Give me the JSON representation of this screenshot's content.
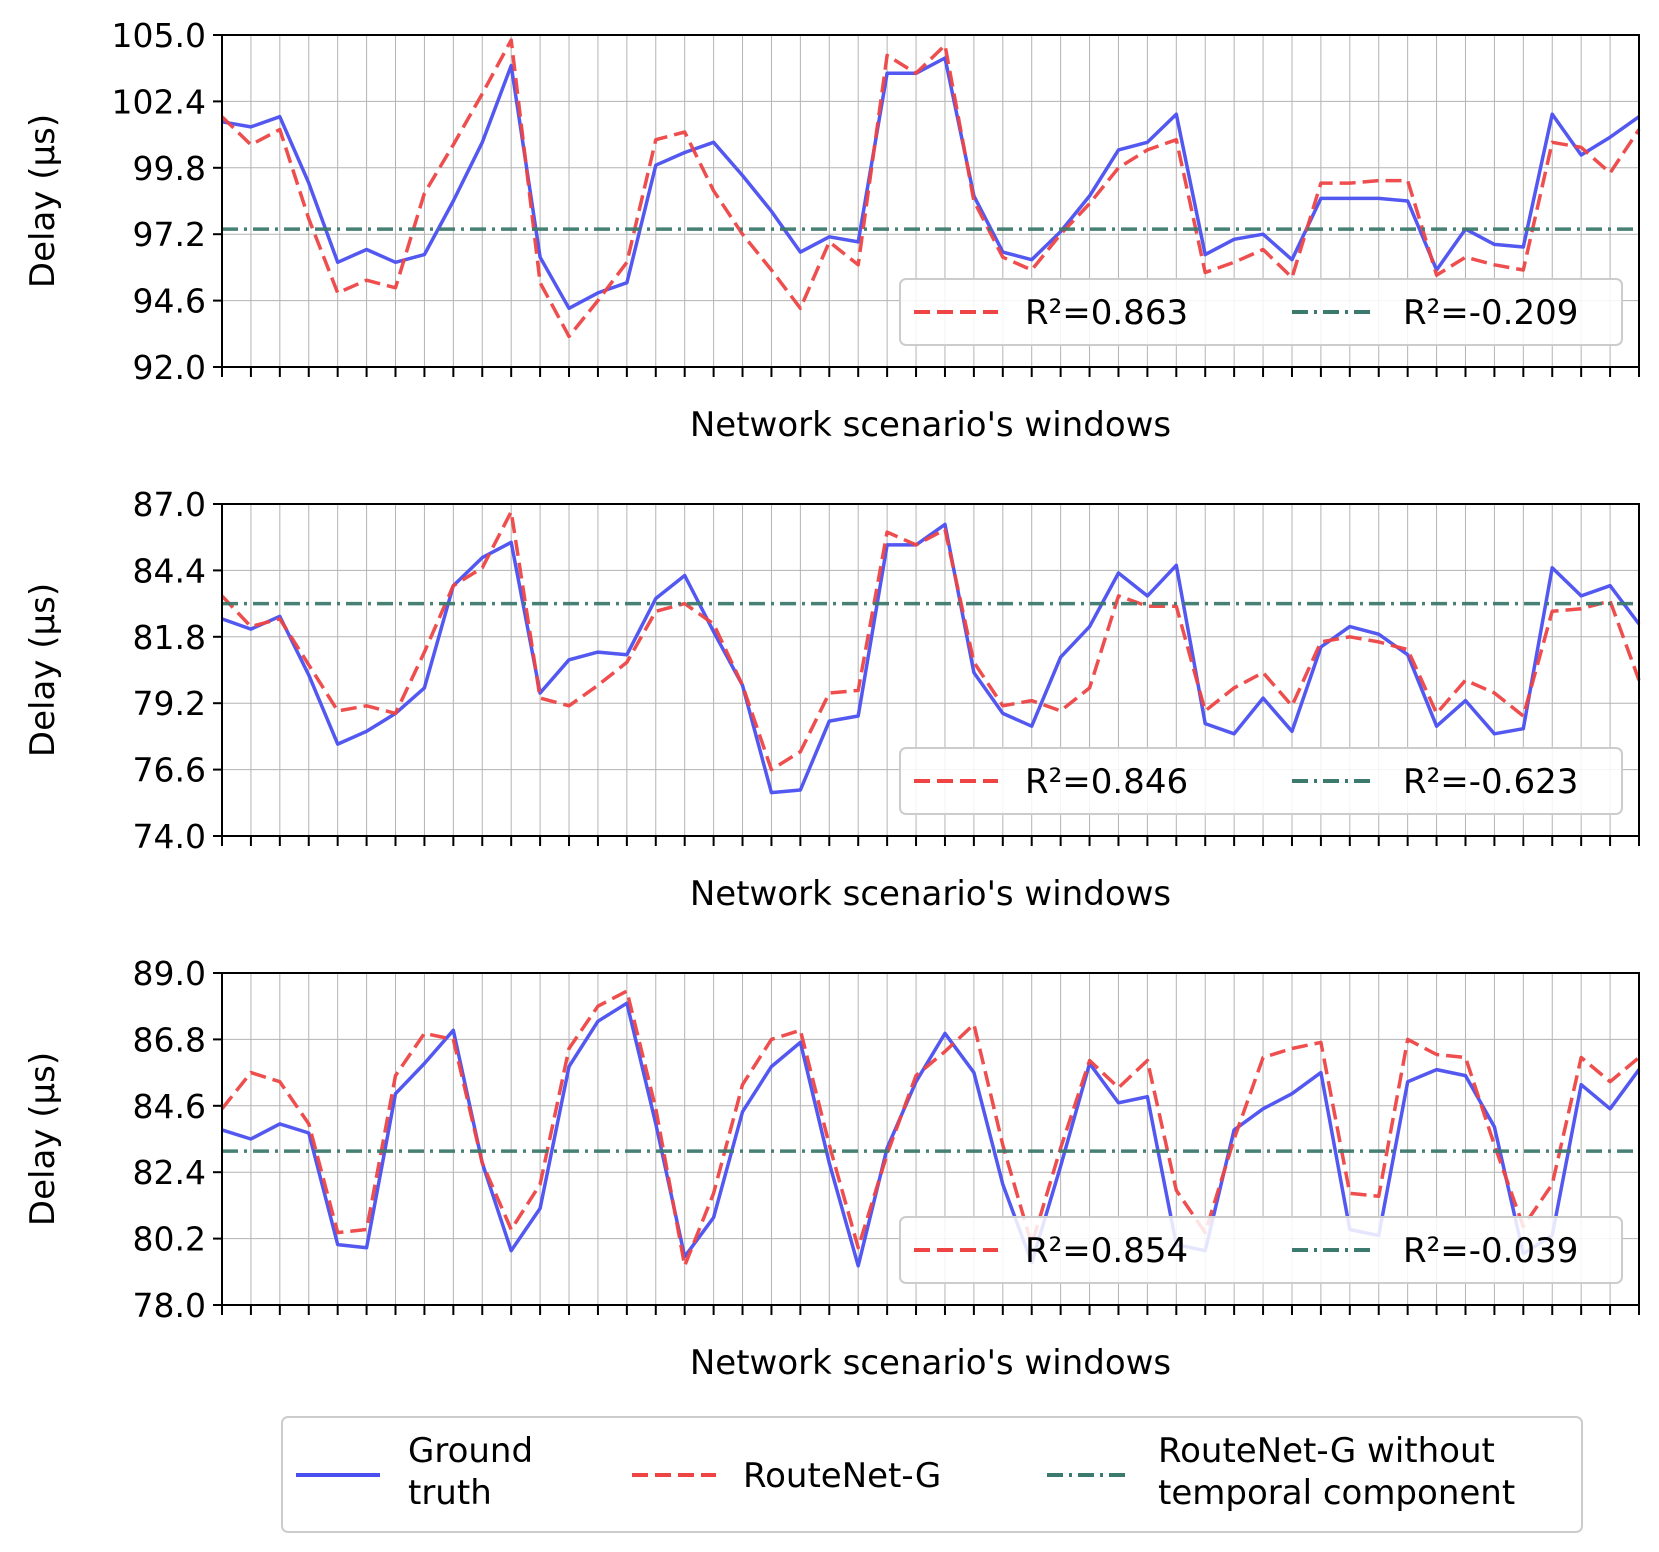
{
  "colors": {
    "ground_truth": "#4a4ff0",
    "routenet": "#ee4444",
    "baseline": "#3d7a6e",
    "grid": "#b3b3b3"
  },
  "legend": {
    "entries": [
      {
        "key": "ground_truth",
        "label_lines": [
          "Ground",
          "truth"
        ],
        "style": "solid"
      },
      {
        "key": "routenet",
        "label_lines": [
          "RouteNet-G"
        ],
        "style": "dashed"
      },
      {
        "key": "baseline",
        "label_lines": [
          "RouteNet-G without",
          "temporal component"
        ],
        "style": "dashdot"
      }
    ]
  },
  "chart_data": [
    {
      "type": "line",
      "xlabel": "Network scenario's windows",
      "ylabel": "Delay (µs)",
      "ylim": [
        92.0,
        105.0
      ],
      "yticks": [
        "92.0",
        "94.6",
        "97.2",
        "99.8",
        "102.4",
        "105.0"
      ],
      "x_count": 50,
      "grid": true,
      "legend_position": "lower-right",
      "r2_labels": [
        "R²=0.863",
        "R²=-0.209"
      ],
      "series": [
        {
          "name": "Ground truth",
          "key": "ground_truth",
          "values": [
            101.6,
            101.4,
            101.8,
            99.2,
            96.1,
            96.6,
            96.1,
            96.4,
            98.5,
            100.8,
            103.8,
            96.3,
            94.3,
            94.9,
            95.3,
            99.9,
            100.4,
            100.8,
            99.5,
            98.1,
            96.5,
            97.1,
            96.9,
            103.5,
            103.5,
            104.1,
            98.7,
            96.5,
            96.2,
            97.3,
            98.7,
            100.5,
            100.8,
            101.9,
            96.4,
            97.0,
            97.2,
            96.2,
            98.6,
            98.6,
            98.6,
            98.5,
            95.8,
            97.4,
            96.8,
            96.7,
            101.9,
            100.3,
            101.0,
            101.8
          ]
        },
        {
          "name": "RouteNet-G",
          "key": "routenet",
          "values": [
            101.8,
            100.7,
            101.3,
            97.8,
            94.9,
            95.4,
            95.1,
            98.8,
            100.7,
            102.7,
            104.8,
            95.3,
            93.2,
            94.6,
            96.1,
            100.9,
            101.2,
            98.9,
            97.2,
            95.8,
            94.3,
            96.9,
            96.0,
            104.2,
            103.5,
            104.6,
            98.5,
            96.3,
            95.8,
            97.2,
            98.4,
            99.8,
            100.5,
            100.9,
            95.7,
            96.1,
            96.6,
            95.5,
            99.2,
            99.2,
            99.3,
            99.3,
            95.6,
            96.3,
            96.0,
            95.8,
            100.8,
            100.6,
            99.6,
            101.3
          ]
        },
        {
          "name": "RouteNet-G without temporal component",
          "key": "baseline",
          "constant": 97.4
        }
      ]
    },
    {
      "type": "line",
      "xlabel": "Network scenario's windows",
      "ylabel": "Delay (µs)",
      "ylim": [
        74.0,
        87.0
      ],
      "yticks": [
        "74.0",
        "76.6",
        "79.2",
        "81.8",
        "84.4",
        "87.0"
      ],
      "x_count": 50,
      "grid": true,
      "legend_position": "lower-right",
      "r2_labels": [
        "R²=0.846",
        "R²=-0.623"
      ],
      "series": [
        {
          "name": "Ground truth",
          "key": "ground_truth",
          "values": [
            82.5,
            82.1,
            82.6,
            80.3,
            77.6,
            78.1,
            78.8,
            79.8,
            83.8,
            84.9,
            85.5,
            79.6,
            80.9,
            81.2,
            81.1,
            83.3,
            84.2,
            82.0,
            79.9,
            75.7,
            75.8,
            78.5,
            78.7,
            85.4,
            85.4,
            86.2,
            80.4,
            78.8,
            78.3,
            81.0,
            82.2,
            84.3,
            83.4,
            84.6,
            78.4,
            78.0,
            79.4,
            78.1,
            81.4,
            82.2,
            81.9,
            81.1,
            78.3,
            79.3,
            78.0,
            78.2,
            84.5,
            83.4,
            83.8,
            82.3
          ]
        },
        {
          "name": "RouteNet-G",
          "key": "routenet",
          "values": [
            83.4,
            82.2,
            82.5,
            80.7,
            78.9,
            79.1,
            78.8,
            81.2,
            83.8,
            84.5,
            86.7,
            79.4,
            79.1,
            79.9,
            80.8,
            82.8,
            83.1,
            82.3,
            79.9,
            76.6,
            77.3,
            79.6,
            79.7,
            85.9,
            85.4,
            86.0,
            80.8,
            79.1,
            79.3,
            78.9,
            79.8,
            83.4,
            83.0,
            83.0,
            78.9,
            79.8,
            80.4,
            79.1,
            81.6,
            81.8,
            81.6,
            81.3,
            78.8,
            80.1,
            79.6,
            78.7,
            82.8,
            82.9,
            83.2,
            80.1
          ]
        },
        {
          "name": "RouteNet-G without temporal component",
          "key": "baseline",
          "constant": 83.1
        }
      ]
    },
    {
      "type": "line",
      "xlabel": "Network scenario's windows",
      "ylabel": "Delay (µs)",
      "ylim": [
        78.0,
        89.0
      ],
      "yticks": [
        "78.0",
        "80.2",
        "82.4",
        "84.6",
        "86.8",
        "89.0"
      ],
      "x_count": 50,
      "grid": true,
      "legend_position": "lower-right",
      "r2_labels": [
        "R²=0.854",
        "R²=-0.039"
      ],
      "series": [
        {
          "name": "Ground truth",
          "key": "ground_truth",
          "values": [
            83.8,
            83.5,
            84.0,
            83.7,
            80.0,
            79.9,
            85.0,
            86.0,
            87.1,
            82.7,
            79.8,
            81.2,
            85.9,
            87.4,
            88.0,
            84.0,
            79.6,
            80.9,
            84.4,
            85.9,
            86.7,
            82.7,
            79.3,
            83.2,
            85.4,
            87.0,
            85.7,
            82.0,
            79.4,
            82.6,
            86.0,
            84.7,
            84.9,
            80.0,
            79.8,
            83.8,
            84.5,
            85.0,
            85.7,
            80.5,
            80.3,
            85.4,
            85.8,
            85.6,
            83.9,
            79.7,
            80.3,
            85.3,
            84.5,
            85.8
          ]
        },
        {
          "name": "RouteNet-G",
          "key": "routenet",
          "values": [
            84.5,
            85.7,
            85.4,
            84.0,
            80.4,
            80.5,
            85.6,
            87.0,
            86.8,
            82.7,
            80.5,
            82.0,
            86.5,
            87.9,
            88.4,
            84.5,
            79.3,
            81.7,
            85.3,
            86.8,
            87.1,
            83.3,
            79.9,
            83.0,
            85.6,
            86.4,
            87.3,
            83.3,
            80.0,
            83.2,
            86.1,
            85.2,
            86.1,
            81.8,
            80.4,
            83.5,
            86.2,
            86.5,
            86.7,
            81.7,
            81.6,
            86.8,
            86.3,
            86.2,
            83.3,
            80.6,
            82.0,
            86.2,
            85.4,
            86.2
          ]
        },
        {
          "name": "RouteNet-G without temporal component",
          "key": "baseline",
          "constant": 83.1
        }
      ]
    }
  ]
}
